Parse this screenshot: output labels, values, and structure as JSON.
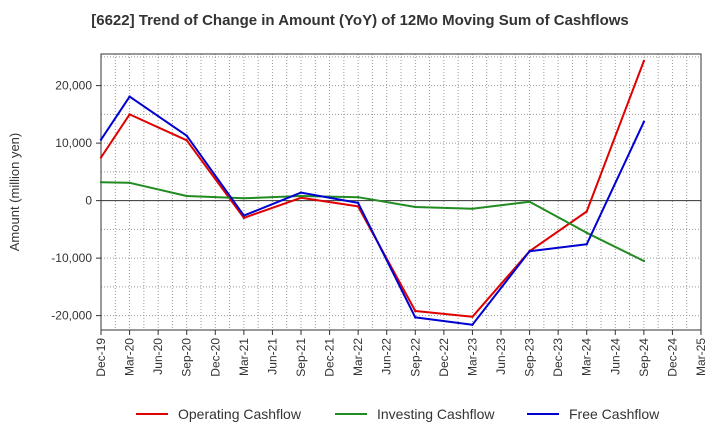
{
  "chart_data": {
    "type": "line",
    "title": "[6622]  Trend of Change in Amount (YoY) of 12Mo Moving Sum of Cashflows",
    "xlabel": "",
    "ylabel": "Amount (million yen)",
    "ylim": [
      -22500,
      25500
    ],
    "yticks": [
      20000,
      10000,
      0,
      -10000,
      -20000
    ],
    "ytick_labels": [
      "20,000",
      "10,000",
      "0",
      "-10,000",
      "-20,000"
    ],
    "categories": [
      "Dec-19",
      "Mar-20",
      "Jun-20",
      "Sep-20",
      "Dec-20",
      "Mar-21",
      "Jun-21",
      "Sep-21",
      "Dec-21",
      "Mar-22",
      "Jun-22",
      "Sep-22",
      "Dec-22",
      "Mar-23",
      "Jun-23",
      "Sep-23",
      "Dec-23",
      "Mar-24",
      "Jun-24",
      "Sep-24",
      "Dec-24",
      "Mar-25"
    ],
    "grid": true,
    "legend_position": "bottom",
    "series": [
      {
        "name": "Operating Cashflow",
        "color": "#e00000",
        "values": [
          7500,
          15000,
          null,
          10500,
          null,
          -3000,
          null,
          500,
          null,
          -1000,
          null,
          -19200,
          null,
          -20200,
          null,
          -8800,
          null,
          -1900,
          null,
          24300,
          null,
          null
        ]
      },
      {
        "name": "Investing Cashflow",
        "color": "#228b22",
        "values": [
          3200,
          3100,
          null,
          800,
          null,
          400,
          null,
          800,
          null,
          600,
          null,
          -1100,
          null,
          -1400,
          null,
          -200,
          null,
          -5600,
          null,
          -10500,
          null,
          null
        ]
      },
      {
        "name": "Free Cashflow",
        "color": "#0000d0",
        "values": [
          10600,
          18100,
          null,
          11300,
          null,
          -2600,
          null,
          1400,
          null,
          -400,
          null,
          -20300,
          null,
          -21600,
          null,
          -8800,
          null,
          -7600,
          null,
          13700,
          null,
          null
        ]
      }
    ]
  }
}
